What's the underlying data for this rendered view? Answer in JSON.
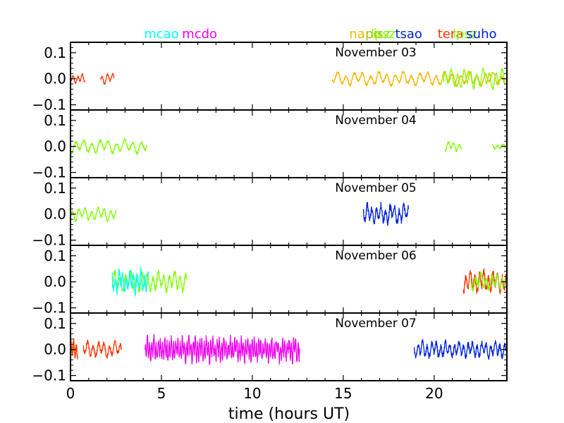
{
  "chart_data": {
    "type": "line",
    "xlabel": "time (hours UT)",
    "xlim": [
      0,
      24
    ],
    "ylim": [
      -0.12,
      0.14
    ],
    "x_ticks": [
      0,
      5,
      10,
      15,
      20
    ],
    "y_ticks": [
      0.1,
      0.0,
      -0.1
    ],
    "y_tick_labels": [
      "0.1",
      "0.0",
      "−0.1"
    ],
    "colors": {
      "mcao": "#00ffff",
      "mcdo": "#ee00ee",
      "napo": "#f5b800",
      "pisz": "#9acd32",
      "lpsz": "#80ff00",
      "tsao": "#0022dd",
      "tera": "#ff3300",
      "suho": "#0022dd"
    },
    "station_labels": [
      {
        "text": "mcao",
        "x": 5.0,
        "color": "#00ffff"
      },
      {
        "text": "mcdo",
        "x": 7.1,
        "color": "#ee00ee"
      },
      {
        "text": "napo",
        "x": 16.2,
        "color": "#f5b800"
      },
      {
        "text": "pisz",
        "x": 16.9,
        "color": "#9acd32"
      },
      {
        "text": "lpsz",
        "x": 17.2,
        "color": "#80ff00"
      },
      {
        "text": "tsao",
        "x": 18.6,
        "color": "#0022dd"
      },
      {
        "text": "tera",
        "x": 20.9,
        "color": "#ff3300"
      },
      {
        "text": "lpsz",
        "x": 21.7,
        "color": "#80ff00"
      },
      {
        "text": "suho",
        "x": 22.6,
        "color": "#0022dd"
      }
    ],
    "panels": [
      {
        "title": "November 03",
        "segments": [
          {
            "station": "tera",
            "color": "#ff3300",
            "x_start": 0.0,
            "x_end": 0.8,
            "amp": 0.012,
            "noise": 0.004,
            "period": 0.25
          },
          {
            "station": "tera",
            "color": "#ff3300",
            "x_start": 1.65,
            "x_end": 2.4,
            "amp": 0.015,
            "noise": 0.004,
            "period": 0.3
          },
          {
            "station": "napo",
            "color": "#f5b800",
            "x_start": 14.4,
            "x_end": 23.9,
            "amp": 0.018,
            "noise": 0.005,
            "period": 0.45
          },
          {
            "station": "lpsz",
            "color": "#80ff00",
            "x_start": 20.5,
            "x_end": 23.9,
            "amp": 0.025,
            "noise": 0.006,
            "period": 0.35
          }
        ]
      },
      {
        "title": "November 04",
        "segments": [
          {
            "station": "lpsz",
            "color": "#80ff00",
            "x_start": 0.0,
            "x_end": 4.2,
            "amp": 0.018,
            "noise": 0.005,
            "period": 0.45
          },
          {
            "station": "lpsz",
            "color": "#80ff00",
            "x_start": 20.6,
            "x_end": 21.5,
            "amp": 0.012,
            "noise": 0.004,
            "period": 0.3
          },
          {
            "station": "lpsz",
            "color": "#80ff00",
            "x_start": 23.2,
            "x_end": 23.95,
            "amp": 0.006,
            "noise": 0.003,
            "period": 0.3
          }
        ]
      },
      {
        "title": "November 05",
        "segments": [
          {
            "station": "lpsz",
            "color": "#80ff00",
            "x_start": 0.0,
            "x_end": 2.5,
            "amp": 0.018,
            "noise": 0.005,
            "period": 0.35
          },
          {
            "station": "tsao",
            "color": "#0022dd",
            "x_start": 16.1,
            "x_end": 18.6,
            "amp": 0.025,
            "noise": 0.012,
            "period": 0.25
          }
        ]
      },
      {
        "title": "November 06",
        "segments": [
          {
            "station": "lpsz",
            "color": "#80ff00",
            "x_start": 2.3,
            "x_end": 6.4,
            "amp": 0.025,
            "noise": 0.01,
            "period": 0.3
          },
          {
            "station": "mcao",
            "color": "#00ffff",
            "x_start": 2.3,
            "x_end": 4.3,
            "amp": 0.03,
            "noise": 0.014,
            "period": 0.2
          },
          {
            "station": "tera",
            "color": "#ff3300",
            "x_start": 21.6,
            "x_end": 23.95,
            "amp": 0.028,
            "noise": 0.012,
            "period": 0.25
          },
          {
            "station": "lpsz",
            "color": "#80ff00",
            "x_start": 22.0,
            "x_end": 23.95,
            "amp": 0.02,
            "noise": 0.01,
            "period": 0.3
          }
        ]
      },
      {
        "title": "November 07",
        "segments": [
          {
            "station": "napo",
            "color": "#f5b800",
            "x_start": 0.0,
            "x_end": 0.3,
            "amp": 0.01,
            "noise": 0.006,
            "period": 0.1
          },
          {
            "station": "tera",
            "color": "#ff3300",
            "x_start": 0.0,
            "x_end": 0.4,
            "amp": 0.025,
            "noise": 0.01,
            "period": 0.15
          },
          {
            "station": "tera",
            "color": "#ff3300",
            "x_start": 0.7,
            "x_end": 2.8,
            "amp": 0.02,
            "noise": 0.008,
            "period": 0.3
          },
          {
            "station": "mcdo",
            "color": "#ee00ee",
            "x_start": 4.1,
            "x_end": 12.6,
            "amp": 0.03,
            "noise": 0.016,
            "period": 0.12
          },
          {
            "station": "tsao",
            "color": "#0022dd",
            "x_start": 18.9,
            "x_end": 23.95,
            "amp": 0.02,
            "noise": 0.01,
            "period": 0.25
          }
        ]
      }
    ]
  }
}
